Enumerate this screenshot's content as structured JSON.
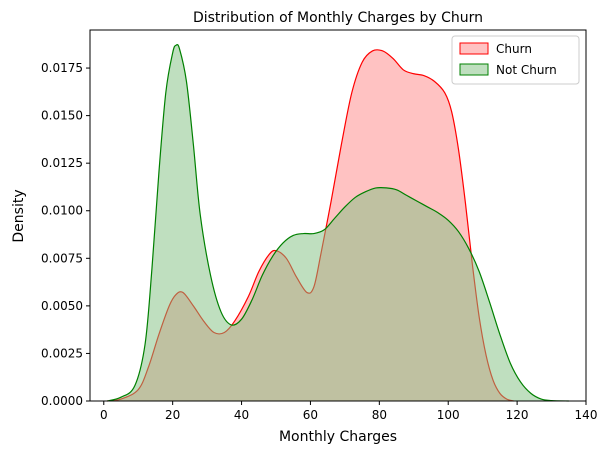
{
  "chart_data": {
    "type": "area",
    "title": "Distribution of Monthly Charges by Churn",
    "xlabel": "Monthly Charges",
    "ylabel": "Density",
    "xlim": [
      -4,
      140
    ],
    "ylim": [
      0,
      0.0195
    ],
    "xticks": [
      0,
      20,
      40,
      60,
      80,
      100,
      120,
      140
    ],
    "yticks": [
      0.0,
      0.0025,
      0.005,
      0.0075,
      0.01,
      0.0125,
      0.015,
      0.0175
    ],
    "ytick_labels": [
      "0.0000",
      "0.0025",
      "0.0050",
      "0.0075",
      "0.0100",
      "0.0125",
      "0.0150",
      "0.0175"
    ],
    "grid": false,
    "legend": {
      "position": "upper right"
    },
    "series": [
      {
        "name": "Churn",
        "line_color": "#ff0000",
        "fill_color": "#ff9999",
        "fill_opacity": 0.6,
        "points": [
          [
            1,
            0
          ],
          [
            5,
            0.0001
          ],
          [
            10,
            0.0006
          ],
          [
            13,
            0.0018
          ],
          [
            16,
            0.0035
          ],
          [
            19,
            0.005
          ],
          [
            21,
            0.0056
          ],
          [
            23,
            0.0057
          ],
          [
            26,
            0.005
          ],
          [
            29,
            0.0042
          ],
          [
            32,
            0.0036
          ],
          [
            35,
            0.0036
          ],
          [
            38,
            0.0042
          ],
          [
            42,
            0.0055
          ],
          [
            45,
            0.0068
          ],
          [
            48,
            0.0077
          ],
          [
            50,
            0.0079
          ],
          [
            53,
            0.0075
          ],
          [
            56,
            0.0065
          ],
          [
            59,
            0.0057
          ],
          [
            61,
            0.006
          ],
          [
            63,
            0.0077
          ],
          [
            66,
            0.0105
          ],
          [
            69,
            0.0135
          ],
          [
            72,
            0.0162
          ],
          [
            75,
            0.0178
          ],
          [
            78,
            0.0184
          ],
          [
            81,
            0.0184
          ],
          [
            84,
            0.018
          ],
          [
            87,
            0.0174
          ],
          [
            90,
            0.0172
          ],
          [
            93,
            0.0171
          ],
          [
            96,
            0.0168
          ],
          [
            99,
            0.0162
          ],
          [
            101,
            0.0152
          ],
          [
            103,
            0.0132
          ],
          [
            105,
            0.0104
          ],
          [
            107,
            0.0072
          ],
          [
            109,
            0.0044
          ],
          [
            111,
            0.0024
          ],
          [
            113,
            0.0011
          ],
          [
            115,
            0.0004
          ],
          [
            117,
            0.0001
          ],
          [
            119,
            0
          ]
        ]
      },
      {
        "name": "Not Churn",
        "line_color": "#008000",
        "fill_color": "#7fbf7f",
        "fill_opacity": 0.5,
        "points": [
          [
            1,
            0
          ],
          [
            5,
            0.0002
          ],
          [
            9,
            0.0008
          ],
          [
            12,
            0.003
          ],
          [
            14,
            0.007
          ],
          [
            16,
            0.012
          ],
          [
            18,
            0.0162
          ],
          [
            20,
            0.0183
          ],
          [
            21,
            0.0187
          ],
          [
            22,
            0.0185
          ],
          [
            24,
            0.0168
          ],
          [
            26,
            0.0135
          ],
          [
            28,
            0.0098
          ],
          [
            31,
            0.0066
          ],
          [
            34,
            0.0047
          ],
          [
            37,
            0.004
          ],
          [
            40,
            0.0043
          ],
          [
            43,
            0.0053
          ],
          [
            46,
            0.0066
          ],
          [
            49,
            0.0076
          ],
          [
            52,
            0.0083
          ],
          [
            55,
            0.0087
          ],
          [
            58,
            0.0088
          ],
          [
            61,
            0.0088
          ],
          [
            64,
            0.009
          ],
          [
            67,
            0.0096
          ],
          [
            70,
            0.0102
          ],
          [
            73,
            0.0107
          ],
          [
            76,
            0.011
          ],
          [
            79,
            0.0112
          ],
          [
            82,
            0.0112
          ],
          [
            85,
            0.0111
          ],
          [
            88,
            0.0108
          ],
          [
            91,
            0.0105
          ],
          [
            94,
            0.0102
          ],
          [
            97,
            0.0099
          ],
          [
            100,
            0.0095
          ],
          [
            103,
            0.0089
          ],
          [
            106,
            0.008
          ],
          [
            109,
            0.0068
          ],
          [
            112,
            0.0052
          ],
          [
            115,
            0.0035
          ],
          [
            118,
            0.002
          ],
          [
            121,
            0.001
          ],
          [
            124,
            0.0004
          ],
          [
            127,
            0.0001
          ],
          [
            130,
            2e-05
          ],
          [
            135,
            0
          ]
        ]
      }
    ]
  }
}
